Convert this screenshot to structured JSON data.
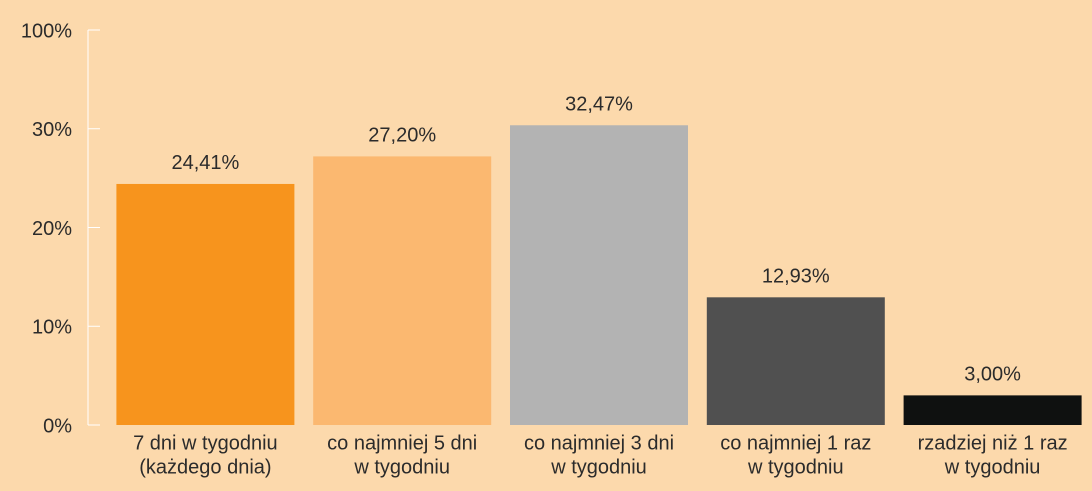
{
  "chart_data": {
    "type": "bar",
    "categories": [
      [
        "7 dni w tygodniu",
        "(każdego dnia)"
      ],
      [
        "co najmniej 5 dni",
        "w tygodniu"
      ],
      [
        "co najmniej 3 dni",
        "w tygodniu"
      ],
      [
        "co najmniej 1 raz",
        "w tygodniu"
      ],
      [
        "rzadziej niż 1 raz",
        "w tygodniu"
      ]
    ],
    "values": [
      24.41,
      27.2,
      32.47,
      12.93,
      3.0
    ],
    "value_labels": [
      "24,41%",
      "27,20%",
      "32,47%",
      "12,93%",
      "3,00%"
    ],
    "colors": [
      "#f7941d",
      "#fbb870",
      "#b3b3b3",
      "#505050",
      "#0f1110"
    ],
    "ylim": [
      0,
      100
    ],
    "yticks": [
      {
        "value": 0,
        "label": "0%"
      },
      {
        "value": 10,
        "label": "10%"
      },
      {
        "value": 20,
        "label": "20%"
      },
      {
        "value": 30,
        "label": "30%"
      },
      {
        "value": 100,
        "label": "100%"
      }
    ],
    "grid": false
  }
}
